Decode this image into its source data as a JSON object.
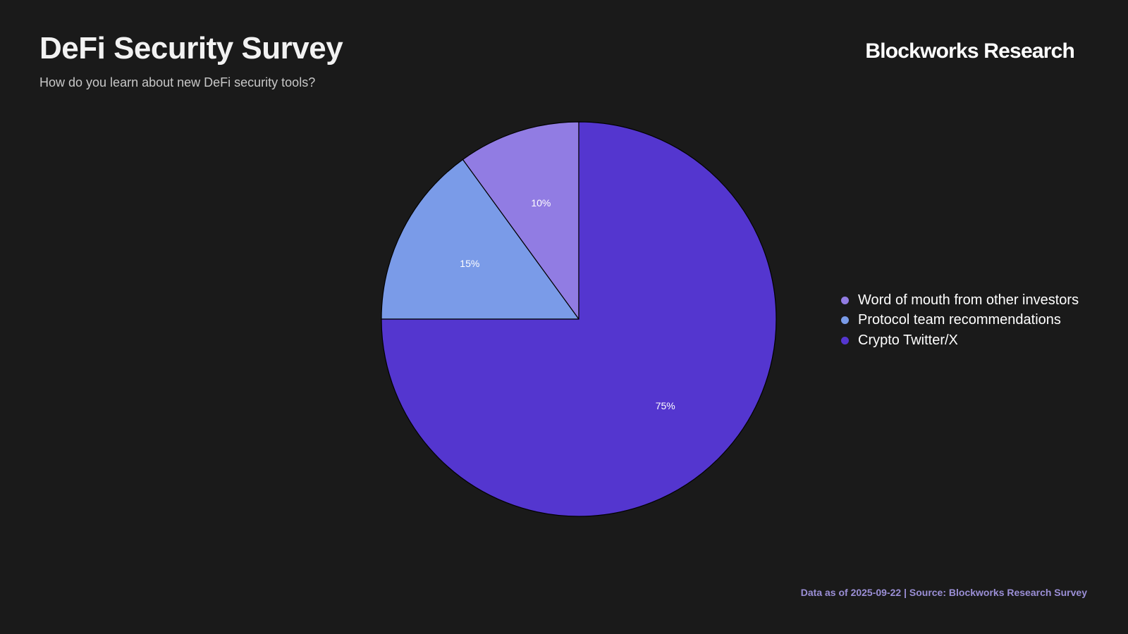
{
  "header": {
    "title": "DeFi Security Survey",
    "subtitle": "How do you learn about new DeFi security tools?",
    "brand": "Blockworks Research"
  },
  "footer": {
    "source": "Data as of 2025-09-22 | Source: Blockworks Research Survey"
  },
  "chart_data": {
    "type": "pie",
    "title": "DeFi Security Survey",
    "subtitle": "How do you learn about new DeFi security tools?",
    "start": "top",
    "direction": "counterclockwise",
    "legend_position": "right",
    "slices": [
      {
        "label": "Word of mouth from other investors",
        "value": 10,
        "display": "10%",
        "color": "#917ce3"
      },
      {
        "label": "Protocol team recommendations",
        "value": 15,
        "display": "15%",
        "color": "#7a9be8"
      },
      {
        "label": "Crypto Twitter/X",
        "value": 75,
        "display": "75%",
        "color": "#5436cf"
      }
    ],
    "slice_border_color": "#000000"
  }
}
